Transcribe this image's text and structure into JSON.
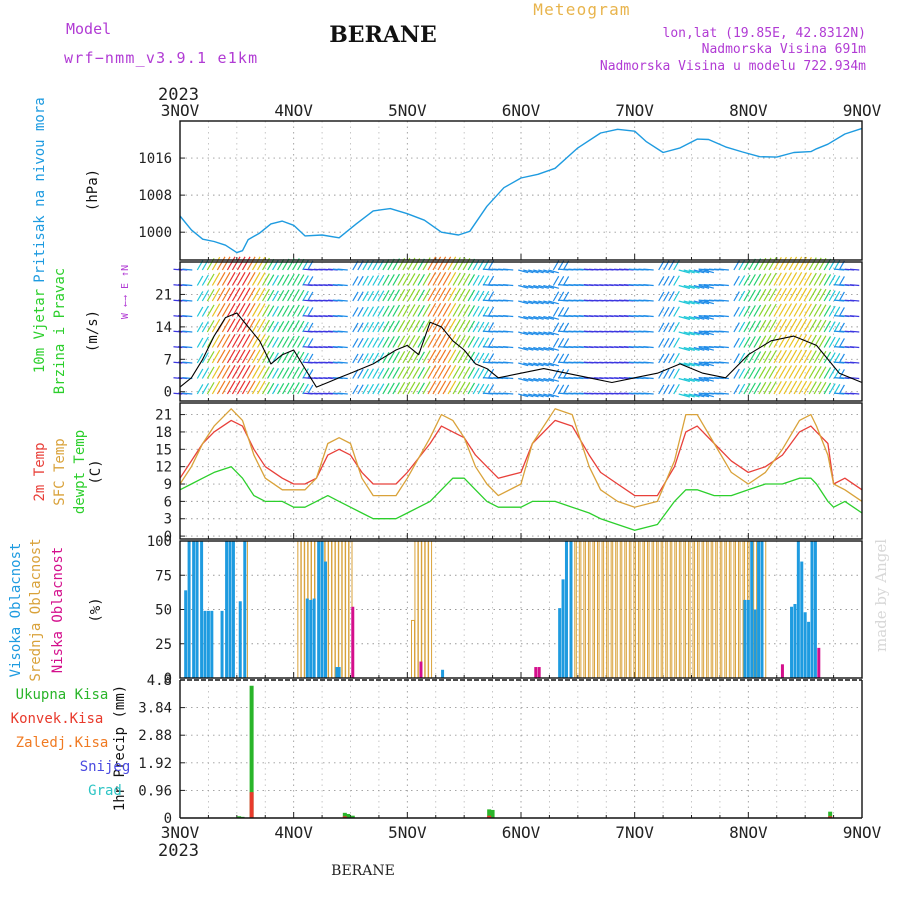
{
  "header": {
    "model_label": "Model",
    "model_value": "wrf−nmm_v3.9.1  e1km",
    "station": "BERANE",
    "meteogram_label": "Meteogram",
    "coords": "lon,lat (19.85E, 42.8312N)",
    "elevation": "Nadmorska Visina 691m",
    "model_elevation": "Nadmorska Visina u modelu 722.934m"
  },
  "footer": {
    "station": "BERANE",
    "watermark": "made by Angel"
  },
  "colors": {
    "pressure": "#1e9be0",
    "wind_speed": "#000000",
    "gust": "#e83a2c",
    "temp_2m": "#e8403a",
    "temp_sfc": "#d9a23a",
    "dewpoint": "#2ccf2c",
    "cloud_high": "#1e9be0",
    "cloud_mid": "#d9a23a",
    "cloud_low": "#d40f8c",
    "precip_total": "#2ab52a",
    "precip_conv": "#e83a2c",
    "precip_frz": "#f07a22",
    "precip_snow": "#4a4ae0",
    "precip_graupel": "#2cc4c4",
    "title_purple": "#b13bd4",
    "meteogram_gold": "#e8b44c"
  },
  "x_axis": {
    "year": "2023",
    "ticks": [
      "3NOV",
      "4NOV",
      "5NOV",
      "6NOV",
      "7NOV",
      "8NOV",
      "9NOV"
    ]
  },
  "chart_data": [
    {
      "type": "line",
      "panel": "pressure",
      "ylabel_1": "Pritisak na nivou mora",
      "ylabel_2": "(hPa)",
      "yticks": [
        "1000",
        "1008",
        "1016"
      ],
      "ylim": [
        994,
        1024
      ],
      "x_range_days": [
        0,
        6
      ],
      "grid": true,
      "series": [
        {
          "name": "Pritisak na nivou mora",
          "x": [
            0,
            0.1,
            0.2,
            0.3,
            0.4,
            0.5,
            0.55,
            0.6,
            0.7,
            0.8,
            0.9,
            1.0,
            1.1,
            1.25,
            1.4,
            1.55,
            1.7,
            1.85,
            2.0,
            2.15,
            2.3,
            2.45,
            2.55,
            2.7,
            2.85,
            3.0,
            3.15,
            3.3,
            3.5,
            3.7,
            3.85,
            4.0,
            4.1,
            4.25,
            4.4,
            4.55,
            4.65,
            4.8,
            4.95,
            5.1,
            5.25,
            5.4,
            5.55,
            5.6,
            5.7,
            5.85,
            6.0
          ],
          "y": [
            1003.5,
            1000.5,
            998.5,
            998.0,
            997.2,
            995.6,
            996.0,
            998.4,
            999.8,
            1001.8,
            1002.4,
            1001.5,
            999.2,
            999.4,
            998.8,
            1001.8,
            1004.6,
            1005.1,
            1004.0,
            1002.6,
            1000.0,
            999.4,
            1000.2,
            1005.6,
            1009.6,
            1011.7,
            1012.5,
            1013.8,
            1018.2,
            1021.4,
            1022.2,
            1021.8,
            1019.6,
            1017.2,
            1018.2,
            1020.1,
            1020.0,
            1018.4,
            1017.3,
            1016.3,
            1016.2,
            1017.2,
            1017.4,
            1018.0,
            1019.0,
            1021.2,
            1022.4
          ]
        }
      ]
    },
    {
      "type": "line",
      "panel": "wind",
      "ylabel_1": "10m Vjetar",
      "ylabel_2": "Brzina i Pravac",
      "ylabel_3": "(m/s)",
      "compass_label": "W ←→ E ↑N",
      "yticks": [
        "0",
        "7",
        "14",
        "21"
      ],
      "ylim": [
        -2,
        28
      ],
      "grid": true,
      "series": [
        {
          "name": "Brzina",
          "x": [
            0,
            0.1,
            0.2,
            0.3,
            0.4,
            0.5,
            0.6,
            0.7,
            0.8,
            0.9,
            1.0,
            1.1,
            1.2,
            1.3,
            1.4,
            1.5,
            1.7,
            1.9,
            2.0,
            2.1,
            2.2,
            2.3,
            2.4,
            2.5,
            2.6,
            2.7,
            2.8,
            3.0,
            3.2,
            3.4,
            3.6,
            3.8,
            4.0,
            4.2,
            4.4,
            4.6,
            4.8,
            5.0,
            5.2,
            5.4,
            5.6,
            5.8,
            6.0
          ],
          "y": [
            1,
            3,
            7,
            12,
            16,
            17,
            14,
            11,
            6,
            8,
            9,
            5,
            1,
            2,
            3,
            4,
            6,
            9,
            10,
            8,
            15,
            14,
            11,
            9,
            6,
            5,
            3,
            4,
            5,
            4,
            3,
            2,
            3,
            4,
            6,
            4,
            3,
            8,
            11,
            12,
            10,
            4,
            2
          ]
        }
      ]
    },
    {
      "type": "line",
      "panel": "temperature",
      "ylabel_1": "2m Temp",
      "ylabel_2": "SFC Temp",
      "ylabel_3": "dewpt Temp",
      "ylabel_4": "(C)",
      "yticks": [
        "0",
        "3",
        "6",
        "9",
        "12",
        "15",
        "18",
        "21"
      ],
      "ylim": [
        -0.5,
        23
      ],
      "grid": true,
      "series": [
        {
          "name": "2m Temp",
          "x": [
            0,
            0.1,
            0.2,
            0.3,
            0.45,
            0.55,
            0.65,
            0.75,
            0.9,
            1.0,
            1.1,
            1.2,
            1.3,
            1.4,
            1.5,
            1.6,
            1.7,
            1.9,
            2.0,
            2.2,
            2.3,
            2.4,
            2.5,
            2.6,
            2.7,
            2.8,
            3.0,
            3.1,
            3.3,
            3.45,
            3.6,
            3.7,
            3.85,
            4.0,
            4.2,
            4.35,
            4.45,
            4.55,
            4.7,
            4.85,
            5.0,
            5.15,
            5.3,
            5.45,
            5.55,
            5.6,
            5.7,
            5.75,
            5.85,
            6.0
          ],
          "y": [
            10,
            13,
            16,
            18,
            20,
            19,
            15,
            12,
            10,
            9,
            9,
            10,
            14,
            15,
            14,
            11,
            9,
            9,
            11,
            16,
            19,
            18,
            17,
            14,
            12,
            10,
            11,
            16,
            20,
            19,
            14,
            11,
            9,
            7,
            7,
            12,
            18,
            19,
            16,
            13,
            11,
            12,
            14,
            18,
            19,
            18,
            16,
            9,
            10,
            8
          ]
        },
        {
          "name": "SFC Temp",
          "x": [
            0,
            0.1,
            0.2,
            0.3,
            0.45,
            0.55,
            0.65,
            0.75,
            0.9,
            1.0,
            1.1,
            1.2,
            1.3,
            1.4,
            1.5,
            1.6,
            1.7,
            1.9,
            2.0,
            2.2,
            2.3,
            2.4,
            2.5,
            2.6,
            2.7,
            2.8,
            3.0,
            3.1,
            3.3,
            3.45,
            3.6,
            3.7,
            3.85,
            4.0,
            4.2,
            4.35,
            4.45,
            4.55,
            4.7,
            4.85,
            5.0,
            5.15,
            5.3,
            5.45,
            5.55,
            5.6,
            5.7,
            5.75,
            5.85,
            6.0
          ],
          "y": [
            9,
            12,
            16,
            19,
            22,
            20,
            14,
            10,
            8,
            8,
            8,
            10,
            16,
            17,
            16,
            10,
            7,
            7,
            10,
            17,
            21,
            20,
            17,
            12,
            9,
            7,
            9,
            16,
            22,
            21,
            12,
            8,
            6,
            5,
            6,
            13,
            21,
            21,
            16,
            11,
            9,
            11,
            15,
            20,
            21,
            19,
            14,
            9,
            8,
            6
          ]
        },
        {
          "name": "dewpt Temp",
          "x": [
            0,
            0.1,
            0.2,
            0.3,
            0.45,
            0.55,
            0.65,
            0.75,
            0.9,
            1.0,
            1.1,
            1.2,
            1.3,
            1.4,
            1.5,
            1.6,
            1.7,
            1.9,
            2.0,
            2.2,
            2.3,
            2.4,
            2.5,
            2.6,
            2.7,
            2.8,
            3.0,
            3.1,
            3.3,
            3.45,
            3.6,
            3.7,
            3.85,
            4.0,
            4.2,
            4.35,
            4.45,
            4.55,
            4.7,
            4.85,
            5.0,
            5.15,
            5.3,
            5.45,
            5.55,
            5.6,
            5.7,
            5.75,
            5.85,
            6.0
          ],
          "y": [
            8,
            9,
            10,
            11,
            12,
            10,
            7,
            6,
            6,
            5,
            5,
            6,
            7,
            6,
            5,
            4,
            3,
            3,
            4,
            6,
            8,
            10,
            10,
            8,
            6,
            5,
            5,
            6,
            6,
            5,
            4,
            3,
            2,
            1,
            2,
            6,
            8,
            8,
            7,
            7,
            8,
            9,
            9,
            10,
            10,
            9,
            6,
            5,
            6,
            4
          ]
        }
      ]
    },
    {
      "type": "bar",
      "panel": "cloud",
      "ylabel_1": "Visoka Oblacnost",
      "ylabel_2": "Srednja Oblacnost",
      "ylabel_3": "Niska Oblacnost",
      "ylabel_4": "(%)",
      "yticks": [
        "0",
        "25",
        "50",
        "75",
        "100"
      ],
      "ylim": [
        0,
        100
      ],
      "grid": true,
      "series": [
        {
          "name": "Visoka Oblacnost",
          "x": [
            0.05,
            0.08,
            0.12,
            0.15,
            0.19,
            0.22,
            0.25,
            0.28,
            0.37,
            0.41,
            0.44,
            0.47,
            0.53,
            0.57,
            1.12,
            1.15,
            1.18,
            1.22,
            1.25,
            1.28,
            3.34,
            3.37,
            3.4,
            3.44,
            4.97,
            5.0,
            5.03,
            5.06,
            5.09,
            5.12,
            5.38,
            5.41,
            5.44,
            5.47,
            5.5,
            5.53,
            5.56,
            5.59,
            1.38,
            1.4,
            2.31
          ],
          "y": [
            64,
            100,
            100,
            100,
            100,
            49,
            49,
            49,
            49,
            100,
            100,
            100,
            56,
            100,
            58,
            57,
            58,
            100,
            100,
            85,
            51,
            72,
            100,
            100,
            57,
            57,
            100,
            50,
            100,
            100,
            52,
            54,
            100,
            85,
            48,
            41,
            100,
            100,
            8,
            8,
            6
          ]
        },
        {
          "name": "Srednja Oblacnost",
          "x": [
            0.58,
            1.05,
            1.08,
            1.11,
            1.14,
            1.17,
            1.2,
            1.23,
            1.26,
            1.29,
            1.32,
            1.35,
            1.38,
            1.41,
            1.44,
            1.47,
            1.5,
            2.05,
            2.08,
            2.11,
            2.14,
            2.17,
            2.2,
            3.42,
            3.46,
            3.5,
            3.54,
            3.58,
            3.62,
            3.66,
            3.7,
            3.74,
            3.78,
            3.82,
            3.86,
            3.9,
            3.94,
            3.98,
            4.02,
            4.06,
            4.1,
            4.14,
            4.18,
            4.22,
            4.26,
            4.3,
            4.34,
            4.38,
            4.42,
            4.46,
            4.5,
            4.54,
            4.58,
            4.62,
            4.66,
            4.7,
            4.74,
            4.78,
            4.82,
            4.86,
            4.9,
            4.94,
            4.98,
            5.02,
            5.06,
            5.1,
            5.14
          ],
          "y": [
            100,
            100,
            100,
            100,
            100,
            100,
            100,
            100,
            100,
            100,
            100,
            100,
            100,
            100,
            100,
            100,
            100,
            42,
            100,
            100,
            100,
            100,
            100,
            100,
            100,
            100,
            100,
            100,
            100,
            100,
            100,
            100,
            100,
            100,
            100,
            100,
            100,
            100,
            100,
            100,
            100,
            100,
            100,
            100,
            100,
            100,
            100,
            100,
            100,
            100,
            100,
            100,
            100,
            100,
            100,
            100,
            100,
            100,
            100,
            100,
            100,
            100,
            100,
            100,
            100,
            100,
            100
          ]
        },
        {
          "name": "Niska Oblacnost",
          "x": [
            1.52,
            2.12,
            3.13,
            3.16,
            5.3,
            5.62
          ],
          "y": [
            52,
            12,
            8,
            8,
            10,
            22
          ]
        }
      ]
    },
    {
      "type": "bar",
      "panel": "precip",
      "ylabel_1": "1hr Precip (mm)",
      "legend": [
        "Ukupna Kisa",
        "Konvek.Kisa",
        "Zaledj.Kisa",
        "Snijeg",
        "Grad"
      ],
      "yticks": [
        "0",
        "0.96",
        "1.92",
        "2.88",
        "3.84",
        "4.8"
      ],
      "ylim": [
        0,
        4.8
      ],
      "grid": true,
      "series": [
        {
          "name": "Ukupna Kisa",
          "x": [
            0.52,
            0.55,
            0.63,
            1.45,
            1.48,
            1.52,
            2.72,
            2.75,
            5.72
          ],
          "y": [
            0.06,
            0.04,
            4.6,
            0.18,
            0.14,
            0.08,
            0.3,
            0.28,
            0.22
          ]
        },
        {
          "name": "Konvek.Kisa",
          "x": [
            0.63,
            1.45,
            2.72,
            5.72
          ],
          "y": [
            0.9,
            0.06,
            0.08,
            0.06
          ]
        }
      ]
    }
  ]
}
